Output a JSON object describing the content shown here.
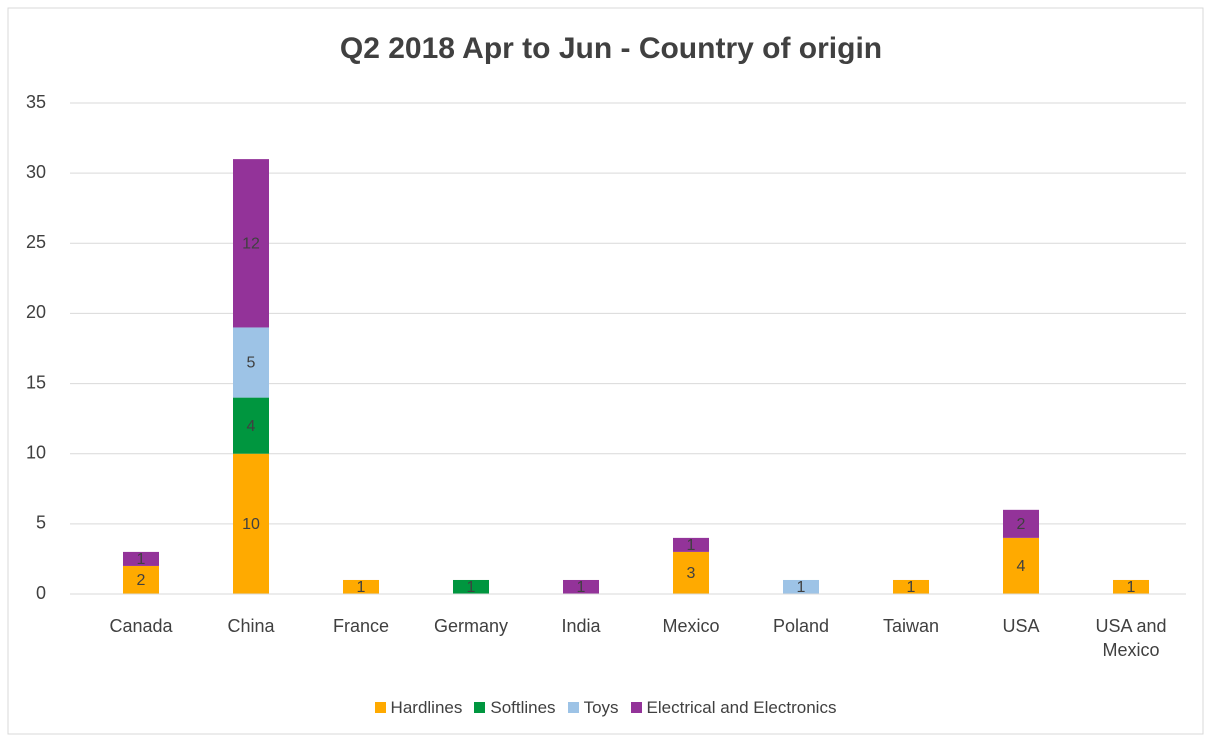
{
  "chart_data": {
    "type": "stacked_bar",
    "title": "Q2 2018 Apr to Jun - Country of origin",
    "categories": [
      "Canada",
      "China",
      "France",
      "Germany",
      "India",
      "Mexico",
      "Poland",
      "Taiwan",
      "USA",
      "USA and Mexico"
    ],
    "series": [
      {
        "name": "Hardlines",
        "color": "#FFAA00",
        "values": [
          2,
          10,
          1,
          null,
          null,
          3,
          null,
          1,
          4,
          1
        ]
      },
      {
        "name": "Softlines",
        "color": "#00963F",
        "values": [
          null,
          4,
          null,
          1,
          null,
          null,
          null,
          null,
          null,
          null
        ]
      },
      {
        "name": "Toys",
        "color": "#9DC3E6",
        "values": [
          null,
          5,
          null,
          null,
          null,
          null,
          1,
          null,
          null,
          null
        ]
      },
      {
        "name": "Electrical and Electronics",
        "color": "#933399",
        "values": [
          1,
          12,
          null,
          null,
          1,
          1,
          null,
          null,
          2,
          null
        ]
      }
    ],
    "ylim": [
      0,
      35
    ],
    "yticks": [
      0,
      5,
      10,
      15,
      20,
      25,
      30,
      35
    ],
    "grid": true,
    "legend": "bottom"
  }
}
